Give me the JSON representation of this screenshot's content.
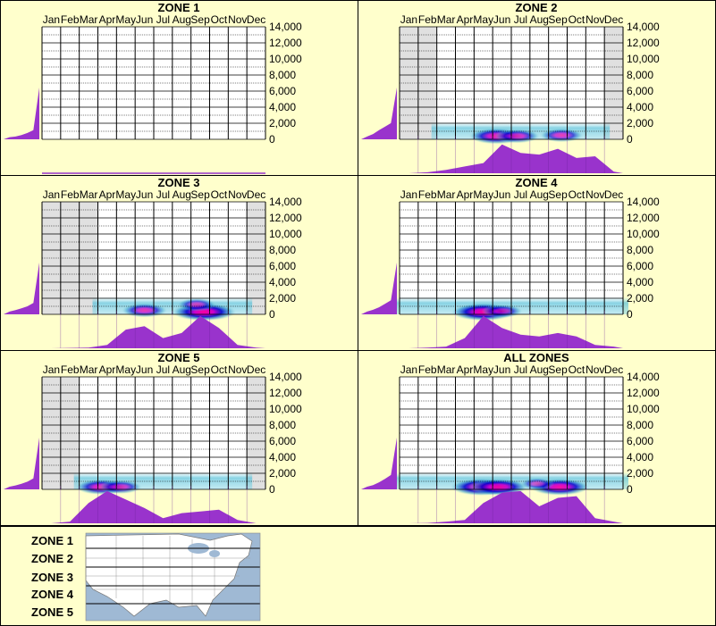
{
  "months": [
    "Jan",
    "Feb",
    "Mar",
    "Apr",
    "May",
    "Jun",
    "Jul",
    "Aug",
    "Sep",
    "Oct",
    "Nov",
    "Dec"
  ],
  "y_ticks": [
    "14,000",
    "12,000",
    "10,000",
    "8,000",
    "6,000",
    "4,000",
    "2,000",
    "0"
  ],
  "colors": {
    "background": "#ffffcc",
    "profile": "#9933cc",
    "inactive_month": "#e0e0e0",
    "heat_low": "#66ccdd",
    "heat_mid": "#0000cc",
    "heat_high": "#ff0099"
  },
  "chart_data": [
    {
      "type": "heatmap",
      "title": "ZONE 1",
      "x_categories": [
        "Jan",
        "Feb",
        "Mar",
        "Apr",
        "May",
        "Jun",
        "Jul",
        "Aug",
        "Sep",
        "Oct",
        "Nov",
        "Dec"
      ],
      "ylim": [
        0,
        14000
      ],
      "active_months": [],
      "elevation_profile": [
        0.0,
        0.02,
        0.06,
        0.14,
        0.26,
        0.42,
        1.0
      ],
      "seasonal_profile": [],
      "hotspots": []
    },
    {
      "type": "heatmap",
      "title": "ZONE 2",
      "x_categories": [
        "Jan",
        "Feb",
        "Mar",
        "Apr",
        "May",
        "Jun",
        "Jul",
        "Aug",
        "Sep",
        "Oct",
        "Nov",
        "Dec"
      ],
      "ylim": [
        0,
        14000
      ],
      "active_months": [
        "Mar",
        "Apr",
        "May",
        "Jun",
        "Jul",
        "Aug",
        "Sep",
        "Oct",
        "Nov"
      ],
      "elevation_profile": [
        0.0,
        0.06,
        0.2,
        0.42,
        0.62,
        0.82,
        1.0
      ],
      "seasonal_profile": [
        0.0,
        0.03,
        0.1,
        0.2,
        0.3,
        0.85,
        0.6,
        0.55,
        0.72,
        0.45,
        0.5,
        0.05
      ],
      "hotspots": [
        {
          "month": 5.2,
          "elev": 400,
          "intensity": 0.8
        },
        {
          "month": 6.3,
          "elev": 400,
          "intensity": 0.6
        },
        {
          "month": 8.7,
          "elev": 500,
          "intensity": 0.55
        }
      ]
    },
    {
      "type": "heatmap",
      "title": "ZONE 3",
      "x_categories": [
        "Jan",
        "Feb",
        "Mar",
        "Apr",
        "May",
        "Jun",
        "Jul",
        "Aug",
        "Sep",
        "Oct",
        "Nov",
        "Dec"
      ],
      "ylim": [
        0,
        14000
      ],
      "active_months": [
        "Apr",
        "May",
        "Jun",
        "Jul",
        "Aug",
        "Sep",
        "Oct",
        "Nov"
      ],
      "elevation_profile": [
        0.0,
        0.06,
        0.14,
        0.24,
        0.36,
        0.55,
        1.0
      ],
      "seasonal_profile": [
        0.0,
        0.01,
        0.02,
        0.1,
        0.55,
        0.65,
        0.3,
        0.45,
        0.95,
        0.6,
        0.1,
        0.02
      ],
      "hotspots": [
        {
          "month": 5.5,
          "elev": 500,
          "intensity": 0.6
        },
        {
          "month": 8.7,
          "elev": 300,
          "intensity": 1.0
        },
        {
          "month": 8.3,
          "elev": 1200,
          "intensity": 0.45
        }
      ]
    },
    {
      "type": "heatmap",
      "title": "ZONE 4",
      "x_categories": [
        "Jan",
        "Feb",
        "Mar",
        "Apr",
        "May",
        "Jun",
        "Jul",
        "Aug",
        "Sep",
        "Oct",
        "Nov",
        "Dec"
      ],
      "ylim": [
        0,
        14000
      ],
      "active_months": [
        "Jan",
        "Feb",
        "Mar",
        "Apr",
        "May",
        "Jun",
        "Jul",
        "Aug",
        "Sep",
        "Oct",
        "Nov",
        "Dec"
      ],
      "elevation_profile": [
        0.0,
        0.06,
        0.16,
        0.3,
        0.5,
        0.7,
        1.0
      ],
      "seasonal_profile": [
        0.0,
        0.02,
        0.05,
        0.3,
        0.95,
        0.6,
        0.4,
        0.35,
        0.45,
        0.35,
        0.1,
        0.05
      ],
      "hotspots": [
        {
          "month": 4.5,
          "elev": 300,
          "intensity": 1.0
        },
        {
          "month": 5.5,
          "elev": 400,
          "intensity": 0.5
        }
      ]
    },
    {
      "type": "heatmap",
      "title": "ZONE 5",
      "x_categories": [
        "Jan",
        "Feb",
        "Mar",
        "Apr",
        "May",
        "Jun",
        "Jul",
        "Aug",
        "Sep",
        "Oct",
        "Nov",
        "Dec"
      ],
      "ylim": [
        0,
        14000
      ],
      "active_months": [
        "Mar",
        "Apr",
        "May",
        "Jun",
        "Jul",
        "Aug",
        "Sep",
        "Oct",
        "Nov"
      ],
      "elevation_profile": [
        0.0,
        0.05,
        0.12,
        0.22,
        0.34,
        0.52,
        1.0
      ],
      "seasonal_profile": [
        0.0,
        0.05,
        0.6,
        0.95,
        0.7,
        0.45,
        0.15,
        0.3,
        0.35,
        0.4,
        0.1,
        0.0
      ],
      "hotspots": [
        {
          "month": 3.2,
          "elev": 300,
          "intensity": 0.75
        },
        {
          "month": 4.2,
          "elev": 300,
          "intensity": 0.55
        }
      ]
    },
    {
      "type": "heatmap",
      "title": "ALL ZONES",
      "x_categories": [
        "Jan",
        "Feb",
        "Mar",
        "Apr",
        "May",
        "Jun",
        "Jul",
        "Aug",
        "Sep",
        "Oct",
        "Nov",
        "Dec"
      ],
      "ylim": [
        0,
        14000
      ],
      "active_months": [
        "Jan",
        "Feb",
        "Mar",
        "Apr",
        "May",
        "Jun",
        "Jul",
        "Aug",
        "Sep",
        "Oct",
        "Nov",
        "Dec"
      ],
      "elevation_profile": [
        0.0,
        0.05,
        0.14,
        0.3,
        0.5,
        0.72,
        1.0
      ],
      "seasonal_profile": [
        0.0,
        0.01,
        0.05,
        0.1,
        0.6,
        0.9,
        0.95,
        0.5,
        0.75,
        0.8,
        0.15,
        0.05
      ],
      "hotspots": [
        {
          "month": 4.4,
          "elev": 300,
          "intensity": 0.95
        },
        {
          "month": 5.3,
          "elev": 300,
          "intensity": 0.9
        },
        {
          "month": 8.6,
          "elev": 300,
          "intensity": 0.9
        },
        {
          "month": 7.4,
          "elev": 700,
          "intensity": 0.35
        }
      ]
    }
  ],
  "legend": {
    "zones": [
      "ZONE 1",
      "ZONE 2",
      "ZONE 3",
      "ZONE 4",
      "ZONE 5"
    ]
  }
}
